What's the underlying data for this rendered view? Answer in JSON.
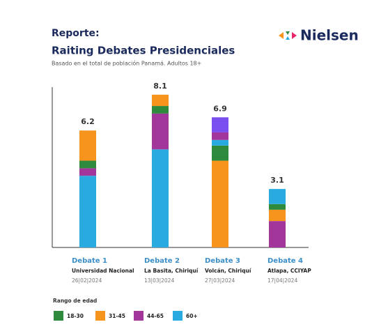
{
  "header": {
    "label": "Reporte:",
    "logo": "Nielsen"
  },
  "chart_data": {
    "type": "stacked_bar",
    "title": "Raiting Debates Presidenciales",
    "subtitle": "Basado en el total de población Panamá. Adultos 18+",
    "categories": [
      "Debate 1",
      "Debate 2",
      "Debate 3",
      "Debate 4"
    ],
    "locations": [
      "Universidad Nacional",
      "La Basita, Chiriquí",
      "Volcán, Chiriquí",
      "Atlapa, CCIYAP"
    ],
    "dates": [
      "26|02|2024",
      "13|03|2024",
      "27|03|2024",
      "17|04|2024"
    ],
    "totals": [
      6.2,
      8.1,
      6.9,
      3.1
    ],
    "series": [
      {
        "name": "18-30",
        "color": "#2e8b3e",
        "values": [
          0.4,
          0.4,
          0.8,
          0.3
        ]
      },
      {
        "name": "31-45",
        "color": "#f7941d",
        "values": [
          1.6,
          0.6,
          4.6,
          0.6
        ]
      },
      {
        "name": "44-65",
        "color": "#a3369b",
        "values": [
          0.4,
          1.9,
          0.4,
          1.4
        ]
      },
      {
        "name": "60+",
        "color": "#29abe2",
        "values": [
          3.8,
          5.2,
          0.3,
          0.8
        ]
      },
      {
        "color": "#7a4ff0",
        "values": [
          null,
          null,
          0.8,
          null
        ]
      }
    ],
    "stack_order": [
      [
        3,
        2,
        0,
        1,
        4
      ],
      [
        3,
        2,
        0,
        1,
        4
      ],
      [
        1,
        0,
        3,
        2,
        4
      ],
      [
        2,
        1,
        0,
        3,
        4
      ]
    ],
    "ylim": [
      0,
      8.5
    ],
    "legend_title": "Rango de edad",
    "legend": "bottom-left"
  }
}
